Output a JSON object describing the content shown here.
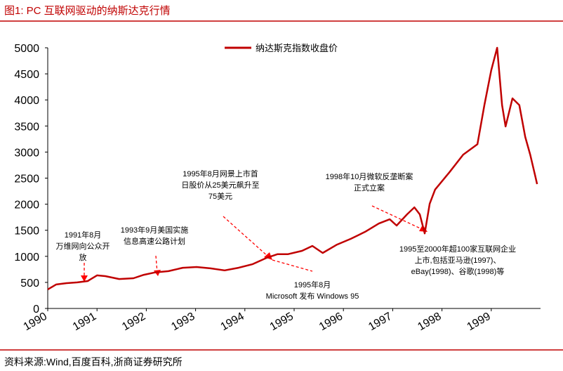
{
  "chart_data": {
    "type": "line",
    "title": "图1:  PC 互联网驱动的纳斯达克行情",
    "source": "资料来源:Wind,百度百科,浙商证券研究所",
    "series": [
      {
        "name": "纳达斯克指数收盘价",
        "color": "#c00000",
        "x": [
          1990.0,
          1990.17,
          1990.38,
          1990.6,
          1990.81,
          1991.0,
          1991.17,
          1991.45,
          1991.74,
          1991.95,
          1992.17,
          1992.45,
          1992.74,
          1993.02,
          1993.3,
          1993.59,
          1993.87,
          1994.16,
          1994.44,
          1994.66,
          1994.87,
          1995.16,
          1995.37,
          1995.58,
          1995.87,
          1996.15,
          1996.44,
          1996.72,
          1996.94,
          1997.08,
          1997.29,
          1997.44,
          1997.55,
          1997.65,
          1997.75,
          1997.86,
          1998.15,
          1998.43,
          1998.72,
          1998.86,
          1999.0,
          1999.12,
          1999.22,
          1999.29,
          1999.43,
          1999.57,
          1999.69,
          1999.79,
          1999.89,
          1999.93
        ],
        "values": [
          365,
          460,
          485,
          500,
          525,
          635,
          620,
          565,
          580,
          645,
          690,
          715,
          780,
          795,
          770,
          730,
          780,
          850,
          970,
          1040,
          1040,
          1105,
          1200,
          1065,
          1225,
          1335,
          1470,
          1630,
          1710,
          1590,
          1805,
          1940,
          1805,
          1440,
          2010,
          2280,
          2610,
          2950,
          3150,
          3900,
          4570,
          5000,
          3900,
          3490,
          4030,
          3900,
          3290,
          2950,
          2550,
          2385
        ]
      }
    ],
    "xlim": [
      1990,
      2000
    ],
    "xticks": [
      1990,
      1991,
      1992,
      1993,
      1994,
      1995,
      1996,
      1997,
      1998,
      1999
    ],
    "ylim": [
      0,
      5000
    ],
    "yticks": [
      0,
      500,
      1000,
      1500,
      2000,
      2500,
      3000,
      3500,
      4000,
      4500,
      5000
    ],
    "annotations": [
      {
        "lines": [
          "1991年8月",
          "万维网向公众开",
          "放"
        ]
      },
      {
        "lines": [
          "1993年9月美国实施",
          "信息高速公路计划"
        ]
      },
      {
        "lines": [
          "1995年8月网景上市首",
          "日股价从25美元飙升至",
          "75美元"
        ]
      },
      {
        "lines": [
          "1995年8月",
          "Microsoft 发布 Windows 95"
        ]
      },
      {
        "lines": [
          "1998年10月微软反垄断案",
          "正式立案"
        ]
      },
      {
        "lines": [
          "1995至2000年超100家互联网企业",
          "上市,包括亚马逊(1997)、",
          "eBay(1998)、谷歌(1998)等"
        ]
      }
    ]
  }
}
